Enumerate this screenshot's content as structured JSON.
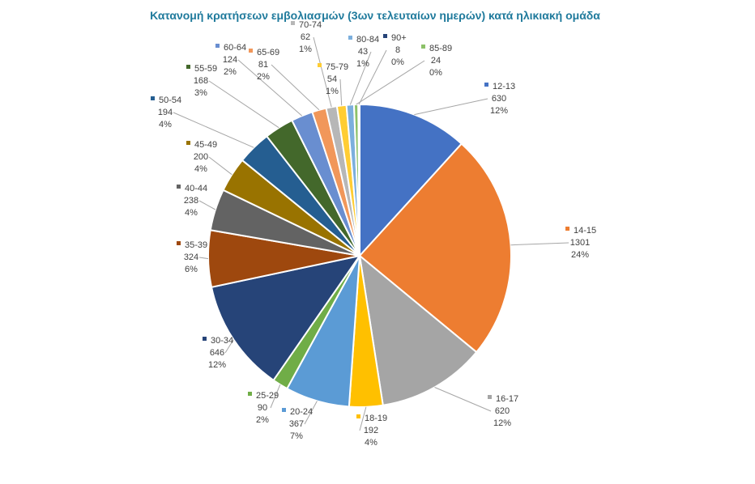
{
  "chart_data": {
    "type": "pie",
    "title": "Κατανομή κρατήσεων εμβολιασμών (3ων τελευταίων ημερών) κατά ηλικιακή ομάδα",
    "legend": "none",
    "slices": [
      {
        "label": "12-13",
        "value": 630,
        "pct": "12%",
        "color": "#4472C4"
      },
      {
        "label": "14-15",
        "value": 1301,
        "pct": "24%",
        "color": "#ED7D31"
      },
      {
        "label": "16-17",
        "value": 620,
        "pct": "12%",
        "color": "#A5A5A5"
      },
      {
        "label": "18-19",
        "value": 192,
        "pct": "4%",
        "color": "#FFC000"
      },
      {
        "label": "20-24",
        "value": 367,
        "pct": "7%",
        "color": "#5B9BD5"
      },
      {
        "label": "25-29",
        "value": 90,
        "pct": "2%",
        "color": "#70AD47"
      },
      {
        "label": "30-34",
        "value": 646,
        "pct": "12%",
        "color": "#264478"
      },
      {
        "label": "35-39",
        "value": 324,
        "pct": "6%",
        "color": "#9E480E"
      },
      {
        "label": "40-44",
        "value": 238,
        "pct": "4%",
        "color": "#636363"
      },
      {
        "label": "45-49",
        "value": 200,
        "pct": "4%",
        "color": "#997300"
      },
      {
        "label": "50-54",
        "value": 194,
        "pct": "4%",
        "color": "#255E91"
      },
      {
        "label": "55-59",
        "value": 168,
        "pct": "3%",
        "color": "#43682B"
      },
      {
        "label": "60-64",
        "value": 124,
        "pct": "2%",
        "color": "#698ED0"
      },
      {
        "label": "65-69",
        "value": 81,
        "pct": "2%",
        "color": "#F1975A"
      },
      {
        "label": "70-74",
        "value": 62,
        "pct": "1%",
        "color": "#B7B7B7"
      },
      {
        "label": "75-79",
        "value": 54,
        "pct": "1%",
        "color": "#FFCD33"
      },
      {
        "label": "80-84",
        "value": 43,
        "pct": "1%",
        "color": "#7CAFDD"
      },
      {
        "label": "85-89",
        "value": 24,
        "pct": "0%",
        "color": "#8CC168"
      },
      {
        "label": "90+",
        "value": 8,
        "pct": "0%",
        "color": "#264478"
      }
    ]
  }
}
